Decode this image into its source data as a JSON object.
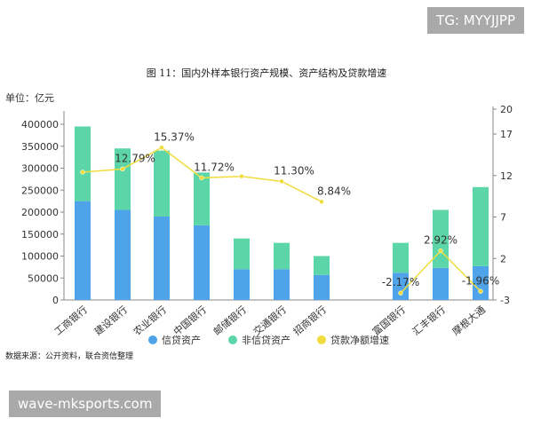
{
  "watermarks": {
    "top": "TG: MYYJJPP",
    "bottom": "wave-mksports.com"
  },
  "unit_label": "单位：亿元",
  "source": "数据来源：公开资料，联合资信整理",
  "colors": {
    "credit": "#4fa3e8",
    "noncredit": "#5cd6a8",
    "growth": "#f0dc3c"
  },
  "chart_data": {
    "type": "bar",
    "title": "图 11：国内外样本银行资产规模、资产结构及贷款增速",
    "categories": [
      "工商银行",
      "建设银行",
      "农业银行",
      "中国银行",
      "邮储银行",
      "交通银行",
      "招商银行",
      "富国银行",
      "汇丰银行",
      "摩根大通"
    ],
    "series": [
      {
        "name": "信贷资产",
        "type": "bar",
        "stack": "assets",
        "values": [
          225000,
          205000,
          190000,
          170000,
          70000,
          70000,
          57000,
          62000,
          73000,
          77000
        ]
      },
      {
        "name": "非信贷资产",
        "type": "bar",
        "stack": "assets",
        "values": [
          170000,
          140000,
          150000,
          120000,
          70000,
          60000,
          43000,
          68000,
          132000,
          180000
        ]
      },
      {
        "name": "贷款净额增速",
        "type": "line",
        "axis": "right",
        "values": [
          12.4,
          12.79,
          15.37,
          11.72,
          11.9,
          11.3,
          8.84,
          -2.17,
          2.92,
          -1.96
        ],
        "labels": [
          "",
          "12.79%",
          "15.37%",
          "11.72%",
          "",
          "11.30%",
          "8.84%",
          "-2.17%",
          "2.92%",
          "-1.96%"
        ]
      }
    ],
    "ylim": [
      0,
      400000
    ],
    "yticks": [
      "0",
      "50000",
      "100000",
      "150000",
      "200000",
      "250000",
      "300000",
      "350000",
      "400000"
    ],
    "y2lim": [
      -3,
      20
    ],
    "y2ticks": [
      "-3",
      "2",
      "7",
      "12",
      "17",
      "20"
    ],
    "legend": "bottom"
  }
}
